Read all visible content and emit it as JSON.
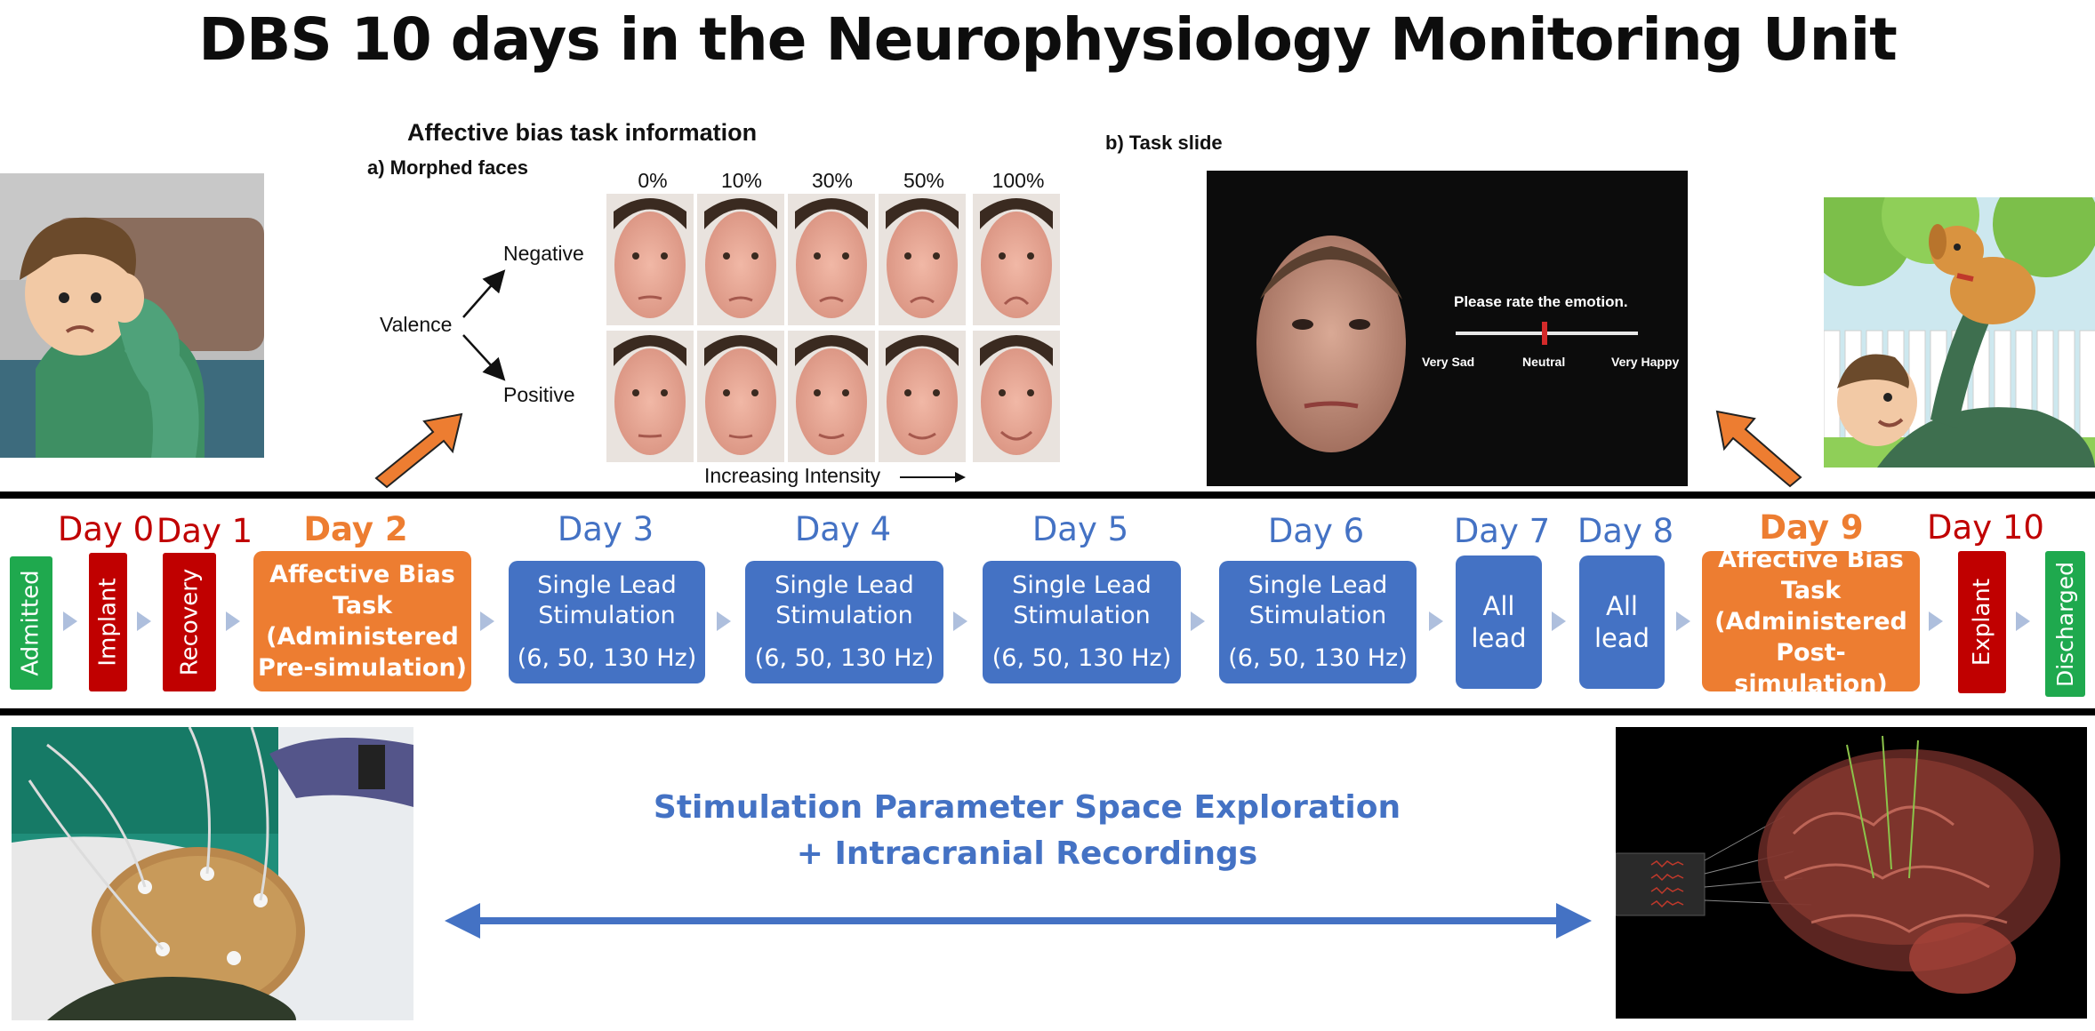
{
  "title": "DBS 10 days in the Neurophysiology Monitoring Unit",
  "task_info": {
    "heading": "Affective bias task information",
    "panel_a": "a) Morphed faces",
    "panel_b": "b) Task slide",
    "percents": [
      "0%",
      "10%",
      "30%",
      "50%",
      "100%"
    ],
    "valence": "Valence",
    "negative": "Negative",
    "positive": "Positive",
    "intensity": "Increasing Intensity"
  },
  "task_slide": {
    "prompt": "Please rate the emotion.",
    "scale": [
      "Very Sad",
      "Neutral",
      "Very Happy"
    ]
  },
  "timeline": {
    "days": {
      "d0": "Day 0",
      "d1": "Day 1",
      "d2": "Day 2",
      "d3": "Day 3",
      "d4": "Day 4",
      "d5": "Day 5",
      "d6": "Day 6",
      "d7": "Day 7",
      "d8": "Day 8",
      "d9": "Day 9",
      "d10": "Day 10"
    },
    "steps": {
      "admitted": "Admitted",
      "implant": "Implant",
      "recovery": "Recovery",
      "abt_pre": [
        "Affective Bias",
        "Task",
        "(Administered",
        "Pre-simulation)"
      ],
      "single_lead": [
        "Single Lead",
        "Stimulation",
        "(6, 50, 130 Hz)"
      ],
      "all_lead": [
        "All",
        "lead"
      ],
      "abt_post": [
        "Affective Bias",
        "Task",
        "(Administered",
        "Post-simulation)"
      ],
      "explant": "Explant",
      "discharged": "Discharged"
    }
  },
  "bottom": {
    "line1": "Stimulation Parameter Space Exploration",
    "line2": "+ Intracranial Recordings"
  },
  "colors": {
    "green": "#1fa94e",
    "red": "#c00000",
    "orange": "#ed7d31",
    "blue": "#4472c4",
    "chevron": "#aebfdd"
  }
}
